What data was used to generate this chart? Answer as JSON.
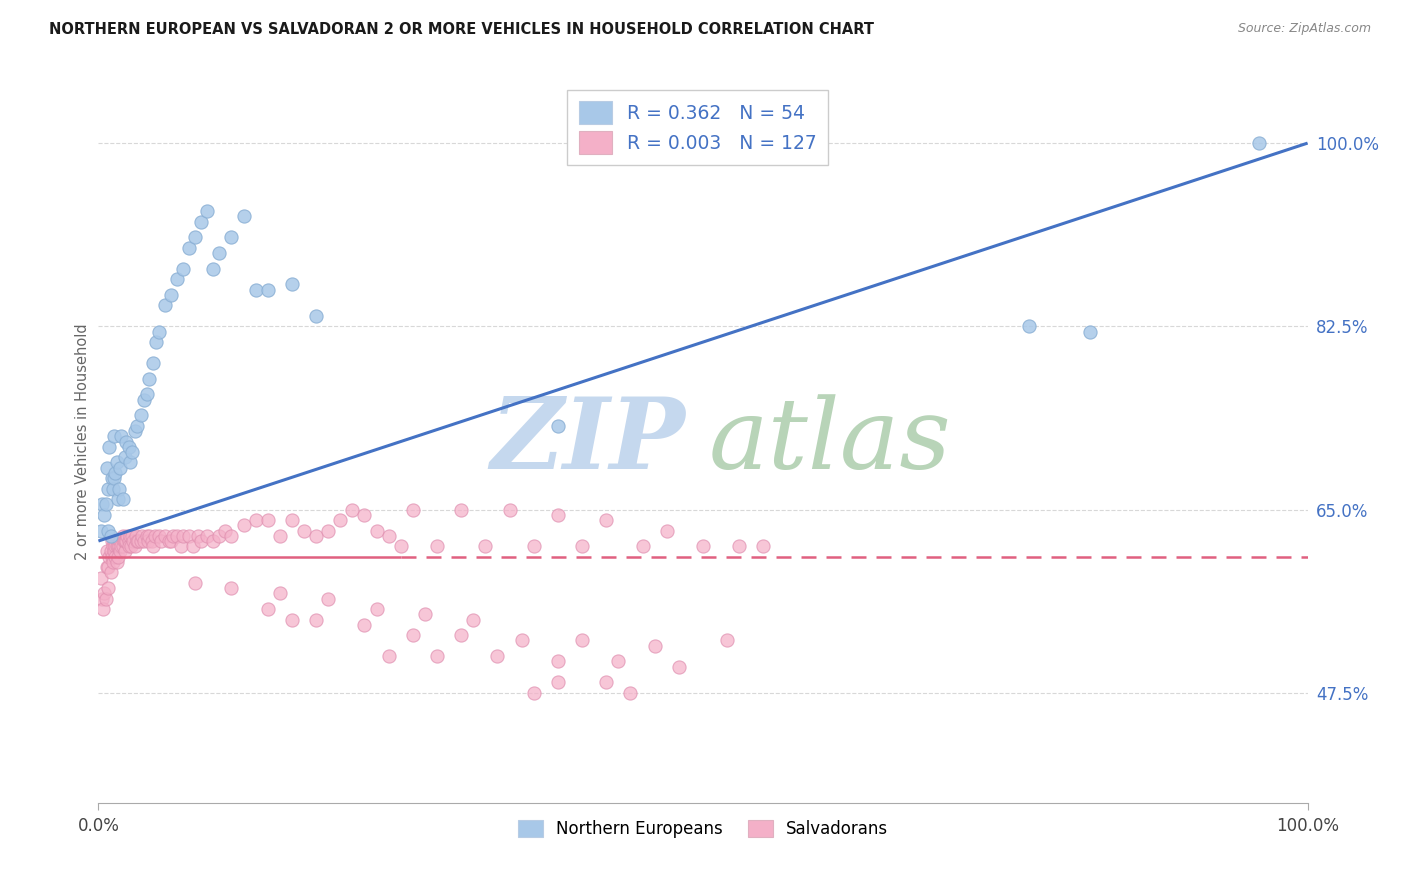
{
  "title": "NORTHERN EUROPEAN VS SALVADORAN 2 OR MORE VEHICLES IN HOUSEHOLD CORRELATION CHART",
  "source": "Source: ZipAtlas.com",
  "ylabel": "2 or more Vehicles in Household",
  "color_blue": "#a8c8e8",
  "color_pink": "#f4b0c8",
  "line_blue": "#4472c4",
  "line_pink": "#e06080",
  "background": "#ffffff",
  "legend_R1": "0.362",
  "legend_N1": "54",
  "legend_R2": "0.003",
  "legend_N2": "127",
  "legend_label1": "Northern Europeans",
  "legend_label2": "Salvadorans",
  "ytick_values": [
    0.475,
    0.65,
    0.825,
    1.0
  ],
  "ytick_labels": [
    "47.5%",
    "65.0%",
    "82.5%",
    "100.0%"
  ],
  "xtick_labels": [
    "0.0%",
    "100.0%"
  ],
  "blue_line_y0": 0.62,
  "blue_line_y1": 1.0,
  "pink_line_y": 0.605,
  "xmin": 0.0,
  "xmax": 1.0,
  "ymin": 0.37,
  "ymax": 1.06,
  "grid_color": "#d8d8d8",
  "title_color": "#1a1a1a",
  "source_color": "#888888",
  "ylabel_color": "#666666",
  "ytick_color": "#4472c4",
  "watermark_zip": "#c5d8ee",
  "watermark_atlas": "#b8d4b8",
  "blue_x": [
    0.002,
    0.003,
    0.005,
    0.006,
    0.007,
    0.008,
    0.008,
    0.009,
    0.01,
    0.011,
    0.012,
    0.013,
    0.013,
    0.014,
    0.015,
    0.016,
    0.017,
    0.018,
    0.019,
    0.02,
    0.022,
    0.023,
    0.025,
    0.026,
    0.028,
    0.03,
    0.032,
    0.035,
    0.038,
    0.04,
    0.042,
    0.045,
    0.048,
    0.05,
    0.055,
    0.06,
    0.065,
    0.07,
    0.075,
    0.08,
    0.085,
    0.09,
    0.095,
    0.1,
    0.11,
    0.12,
    0.13,
    0.14,
    0.16,
    0.18,
    0.38,
    0.77,
    0.82,
    0.96
  ],
  "blue_y": [
    0.63,
    0.655,
    0.645,
    0.655,
    0.69,
    0.67,
    0.63,
    0.71,
    0.625,
    0.68,
    0.67,
    0.72,
    0.68,
    0.685,
    0.695,
    0.66,
    0.67,
    0.69,
    0.72,
    0.66,
    0.7,
    0.715,
    0.71,
    0.695,
    0.705,
    0.725,
    0.73,
    0.74,
    0.755,
    0.76,
    0.775,
    0.79,
    0.81,
    0.82,
    0.845,
    0.855,
    0.87,
    0.88,
    0.9,
    0.91,
    0.925,
    0.935,
    0.88,
    0.895,
    0.91,
    0.93,
    0.86,
    0.86,
    0.865,
    0.835,
    0.73,
    0.825,
    0.82,
    1.0
  ],
  "pink_x": [
    0.002,
    0.003,
    0.004,
    0.005,
    0.006,
    0.007,
    0.007,
    0.008,
    0.008,
    0.009,
    0.01,
    0.01,
    0.011,
    0.011,
    0.012,
    0.012,
    0.013,
    0.013,
    0.014,
    0.014,
    0.015,
    0.015,
    0.016,
    0.016,
    0.017,
    0.018,
    0.018,
    0.019,
    0.02,
    0.02,
    0.021,
    0.022,
    0.022,
    0.023,
    0.024,
    0.025,
    0.025,
    0.026,
    0.027,
    0.028,
    0.029,
    0.03,
    0.031,
    0.032,
    0.033,
    0.035,
    0.036,
    0.038,
    0.04,
    0.041,
    0.042,
    0.044,
    0.045,
    0.047,
    0.05,
    0.052,
    0.055,
    0.058,
    0.06,
    0.062,
    0.065,
    0.068,
    0.07,
    0.075,
    0.078,
    0.082,
    0.085,
    0.09,
    0.095,
    0.1,
    0.105,
    0.11,
    0.12,
    0.13,
    0.14,
    0.15,
    0.16,
    0.17,
    0.18,
    0.19,
    0.2,
    0.21,
    0.22,
    0.23,
    0.24,
    0.25,
    0.26,
    0.28,
    0.3,
    0.32,
    0.34,
    0.36,
    0.38,
    0.4,
    0.42,
    0.45,
    0.47,
    0.5,
    0.53,
    0.55,
    0.14,
    0.16,
    0.18,
    0.22,
    0.26,
    0.3,
    0.35,
    0.4,
    0.46,
    0.52,
    0.24,
    0.28,
    0.33,
    0.38,
    0.43,
    0.48,
    0.38,
    0.42,
    0.44,
    0.36,
    0.08,
    0.11,
    0.15,
    0.19,
    0.23,
    0.27,
    0.31
  ],
  "pink_y": [
    0.585,
    0.565,
    0.555,
    0.57,
    0.565,
    0.61,
    0.595,
    0.595,
    0.575,
    0.605,
    0.59,
    0.61,
    0.62,
    0.605,
    0.615,
    0.6,
    0.61,
    0.62,
    0.615,
    0.605,
    0.6,
    0.615,
    0.605,
    0.615,
    0.615,
    0.61,
    0.62,
    0.615,
    0.615,
    0.625,
    0.62,
    0.61,
    0.62,
    0.62,
    0.625,
    0.62,
    0.615,
    0.625,
    0.615,
    0.625,
    0.62,
    0.615,
    0.625,
    0.62,
    0.62,
    0.62,
    0.625,
    0.62,
    0.625,
    0.62,
    0.625,
    0.62,
    0.615,
    0.625,
    0.625,
    0.62,
    0.625,
    0.62,
    0.62,
    0.625,
    0.625,
    0.615,
    0.625,
    0.625,
    0.615,
    0.625,
    0.62,
    0.625,
    0.62,
    0.625,
    0.63,
    0.625,
    0.635,
    0.64,
    0.64,
    0.625,
    0.64,
    0.63,
    0.625,
    0.63,
    0.64,
    0.65,
    0.645,
    0.63,
    0.625,
    0.615,
    0.65,
    0.615,
    0.65,
    0.615,
    0.65,
    0.615,
    0.645,
    0.615,
    0.64,
    0.615,
    0.63,
    0.615,
    0.615,
    0.615,
    0.555,
    0.545,
    0.545,
    0.54,
    0.53,
    0.53,
    0.525,
    0.525,
    0.52,
    0.525,
    0.51,
    0.51,
    0.51,
    0.505,
    0.505,
    0.5,
    0.485,
    0.485,
    0.475,
    0.475,
    0.58,
    0.575,
    0.57,
    0.565,
    0.555,
    0.55,
    0.545
  ]
}
